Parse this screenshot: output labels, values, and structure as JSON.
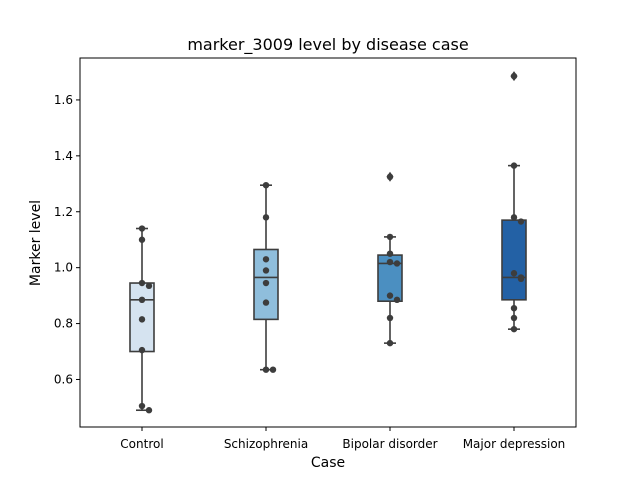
{
  "chart_data": {
    "type": "box",
    "title": "marker_3009 level by disease case",
    "xlabel": "Case",
    "ylabel": "Marker level",
    "ylim": [
      0.43,
      1.75
    ],
    "yticks": [
      "0.6",
      "0.8",
      "1.0",
      "1.2",
      "1.4",
      "1.6"
    ],
    "grid": false,
    "categories": [
      "Control",
      "Schizophrenia",
      "Bipolar disorder",
      "Major depression"
    ],
    "colors": [
      "#d5e3f0",
      "#8fbedc",
      "#4b8fc1",
      "#2361a5"
    ],
    "boxes": [
      {
        "category": "Control",
        "q1": 0.7,
        "median": 0.885,
        "q3": 0.945,
        "whisker_low": 0.49,
        "whisker_high": 1.14,
        "outliers": []
      },
      {
        "category": "Schizophrenia",
        "q1": 0.815,
        "median": 0.965,
        "q3": 1.065,
        "whisker_low": 0.635,
        "whisker_high": 1.295,
        "outliers": []
      },
      {
        "category": "Bipolar disorder",
        "q1": 0.88,
        "median": 1.015,
        "q3": 1.045,
        "whisker_low": 0.73,
        "whisker_high": 1.11,
        "outliers": [
          1.325
        ]
      },
      {
        "category": "Major depression",
        "q1": 0.885,
        "median": 0.965,
        "q3": 1.17,
        "whisker_low": 0.78,
        "whisker_high": 1.365,
        "outliers": [
          1.685
        ]
      }
    ],
    "points": [
      {
        "category": "Control",
        "values": [
          1.14,
          1.1,
          0.945,
          0.935,
          0.885,
          0.815,
          0.705,
          0.505,
          0.49
        ]
      },
      {
        "category": "Schizophrenia",
        "values": [
          1.295,
          1.18,
          1.03,
          0.99,
          0.945,
          0.875,
          0.635,
          0.635
        ]
      },
      {
        "category": "Bipolar disorder",
        "values": [
          1.325,
          1.11,
          1.05,
          1.02,
          1.015,
          0.9,
          0.885,
          0.82,
          0.73
        ]
      },
      {
        "category": "Major depression",
        "values": [
          1.685,
          1.365,
          1.18,
          1.165,
          0.98,
          0.965,
          0.96,
          0.855,
          0.82,
          0.78
        ]
      }
    ]
  }
}
